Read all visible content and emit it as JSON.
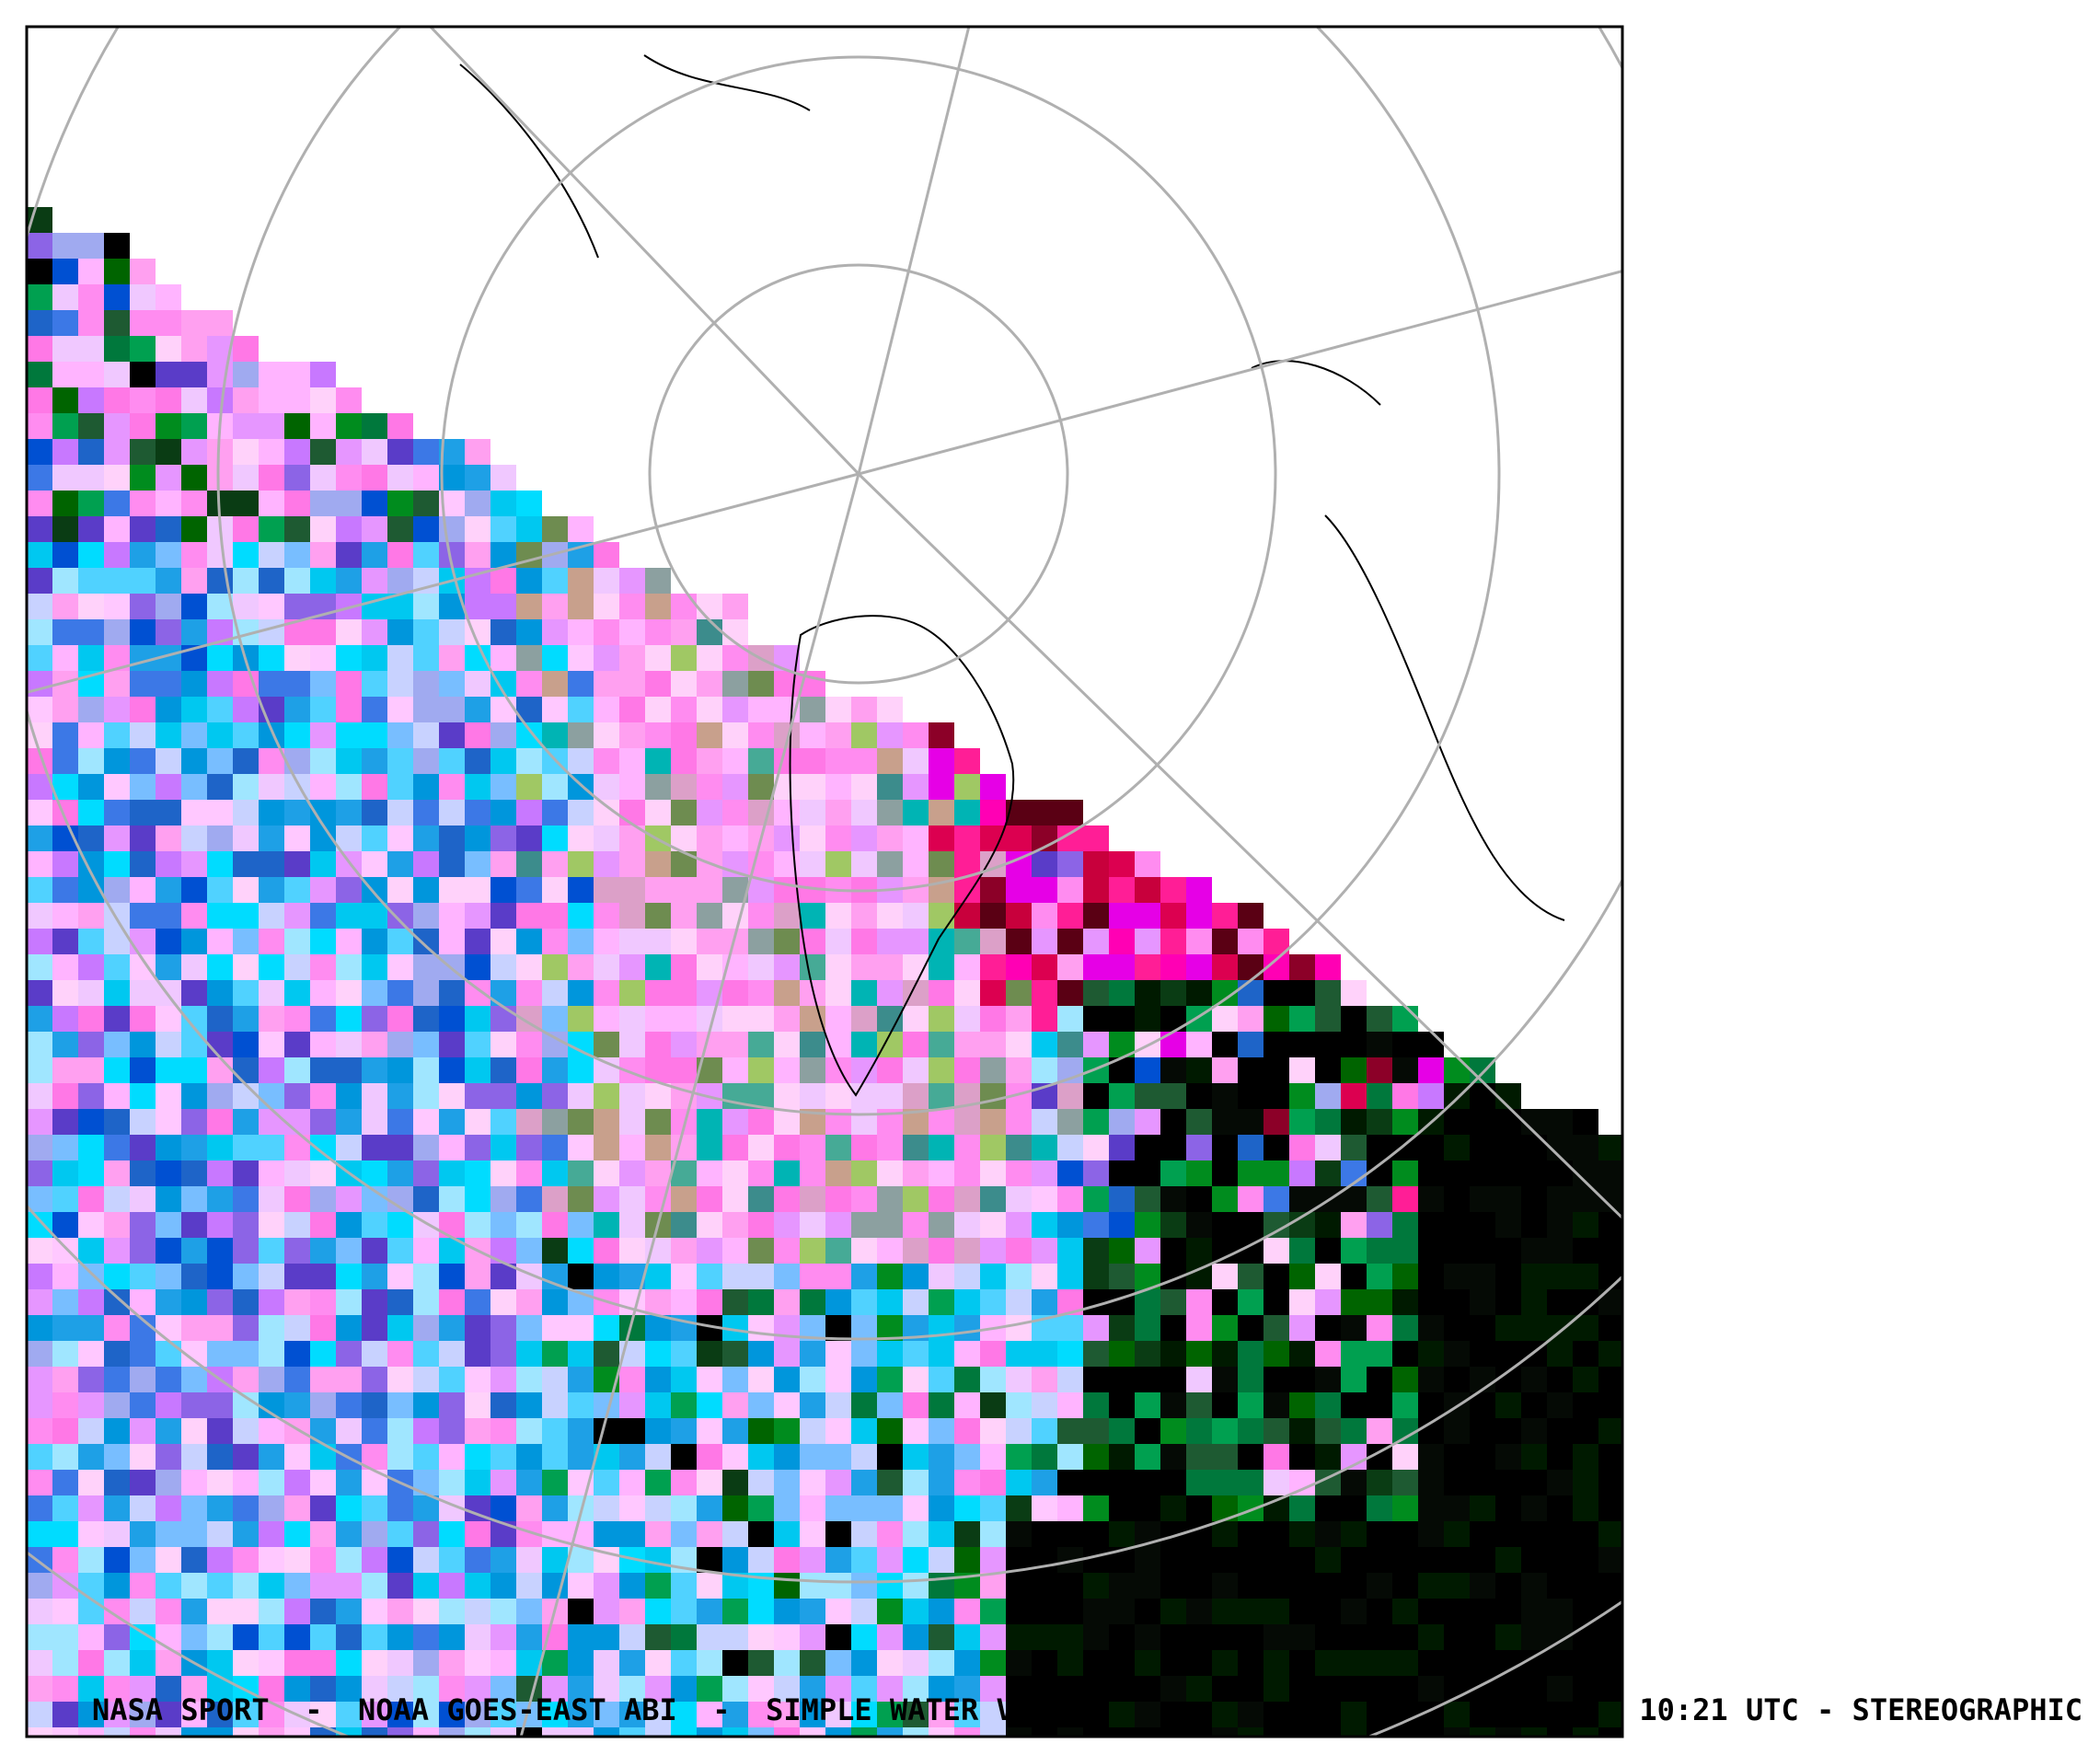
{
  "caption": {
    "left": "NASA SPORT  -  NOAA GOES-EAST ABI  -  SIMPLE WATER VA",
    "right": "10:21 UTC - STEREOGRAPHIC"
  }
}
